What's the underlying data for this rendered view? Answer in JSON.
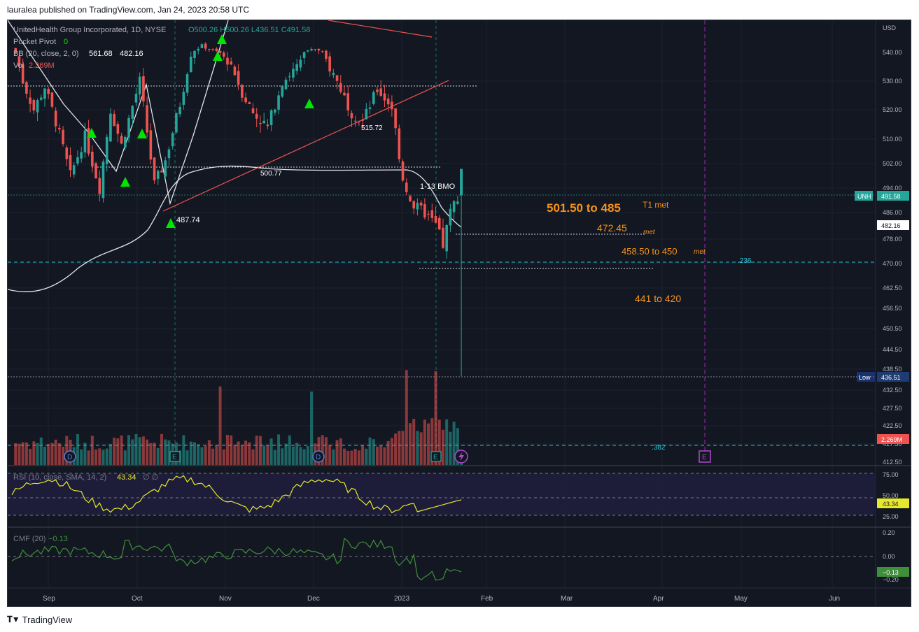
{
  "publisher_line": "lauralea published on TradingView.com, Jan 24, 2023 20:58 UTC",
  "brand": "TradingView",
  "legend": {
    "symbol": "UnitedHealth Group Incorporated, 1D, NYSE",
    "ohlc": "O500.26 H500.26 L436.51 C491.58",
    "pocket_pivot": "Pocket Pivot",
    "pocket_pivot_value": "0",
    "bb": "BB (20, close, 2, 0)",
    "bb_upper": "561.68",
    "bb_lower": "482.16",
    "vol": "Vol",
    "vol_value": "2.269M"
  },
  "price_axis": {
    "currency": "USD",
    "ticks": [
      "540.00",
      "530.00",
      "520.00",
      "510.00",
      "502.00",
      "494.00",
      "486.00",
      "478.00",
      "470.00",
      "462.50",
      "456.50",
      "450.50",
      "444.50",
      "438.50",
      "432.50",
      "427.50",
      "422.50",
      "417.50",
      "412.50"
    ],
    "tags": {
      "last_symbol": "UNH",
      "last_price": "491.58",
      "bb_lower": "482.16",
      "low_label": "Low",
      "low_price": "436.51",
      "volume": "2.269M"
    }
  },
  "annotations": {
    "t1": "501.50 to 485",
    "t1_status": "T1 met",
    "t2": "472.45",
    "t2_status": "met",
    "t3": "458.50 to 450",
    "t3_status": "met",
    "t4": "441 to 420",
    "earnings_note": "1-13 BMO",
    "fib_236": ".236",
    "fib_382": ".382",
    "level_515": "515.72",
    "level_500": "500.77",
    "level_487": "487.74"
  },
  "event_markers": {
    "dividend": "D",
    "earnings": "E"
  },
  "rsi": {
    "title": "RSI (10, close, SMA, 14, 2)",
    "value": "43.34",
    "extra": "∅ ∅",
    "ticks": [
      "75.00",
      "50.00",
      "25.00"
    ],
    "tag": "43.34",
    "color": "#e5e82e"
  },
  "cmf": {
    "title": "CMF (20)",
    "value": "−0.13",
    "ticks": [
      "0.20",
      "0.00",
      "−0.20"
    ],
    "tag": "−0.13",
    "color": "#3f8f3a"
  },
  "time_axis": [
    "Sep",
    "Oct",
    "Nov",
    "Dec",
    "2023",
    "Feb",
    "Mar",
    "Apr",
    "May",
    "Jun"
  ],
  "colors": {
    "bg": "#131722",
    "up": "#26a69a",
    "down": "#ef5350",
    "orange": "#f7931a",
    "fib": "#26c6da",
    "earnings_line": "#9c27b0"
  },
  "chart_data": {
    "type": "candlestick",
    "symbol": "UNH",
    "interval": "1D",
    "x_range": [
      "2022-08-15",
      "2023-06-15"
    ],
    "y_range": [
      412.5,
      545
    ],
    "price_path": [
      [
        0,
        545
      ],
      [
        3,
        530
      ],
      [
        6,
        520
      ],
      [
        9,
        528
      ],
      [
        12,
        516
      ],
      [
        16,
        498
      ],
      [
        20,
        511
      ],
      [
        24,
        494
      ],
      [
        27,
        520
      ],
      [
        30,
        508
      ],
      [
        35,
        530
      ],
      [
        39,
        495
      ],
      [
        42,
        503
      ],
      [
        46,
        522
      ],
      [
        49,
        540
      ],
      [
        52,
        548
      ],
      [
        55,
        542
      ],
      [
        60,
        536
      ],
      [
        63,
        526
      ],
      [
        66,
        519
      ],
      [
        70,
        514
      ],
      [
        74,
        530
      ],
      [
        79,
        536
      ],
      [
        82,
        546
      ],
      [
        86,
        537
      ],
      [
        89,
        530
      ],
      [
        93,
        519
      ],
      [
        96,
        516
      ],
      [
        100,
        527
      ],
      [
        104,
        521
      ],
      [
        107,
        497
      ],
      [
        110,
        488
      ],
      [
        113,
        486
      ],
      [
        116,
        482
      ],
      [
        118,
        476
      ],
      [
        120,
        486
      ],
      [
        122,
        491.58
      ]
    ],
    "last_candle": {
      "open": 500.26,
      "high": 500.26,
      "low": 436.51,
      "close": 491.58
    },
    "bollinger": {
      "upper": 561.68,
      "lower": 482.16
    },
    "volume_last": "2.269M",
    "fib_levels": {
      "0.236": 470.5,
      "0.382": 416.7
    },
    "levels": {
      "515.72": 515.72,
      "500.77": 500.77,
      "487.74": 487.74
    },
    "targets": [
      {
        "label": "501.50 to 485",
        "status": "T1 met"
      },
      {
        "label": "472.45",
        "status": "met"
      },
      {
        "label": "458.50 to 450",
        "status": "met"
      },
      {
        "label": "441 to 420"
      }
    ],
    "rsi": {
      "period": 10,
      "last": 43.34,
      "ylim": [
        10,
        90
      ]
    },
    "cmf": {
      "period": 20,
      "last": -0.13,
      "ylim": [
        -0.3,
        0.3
      ]
    }
  }
}
